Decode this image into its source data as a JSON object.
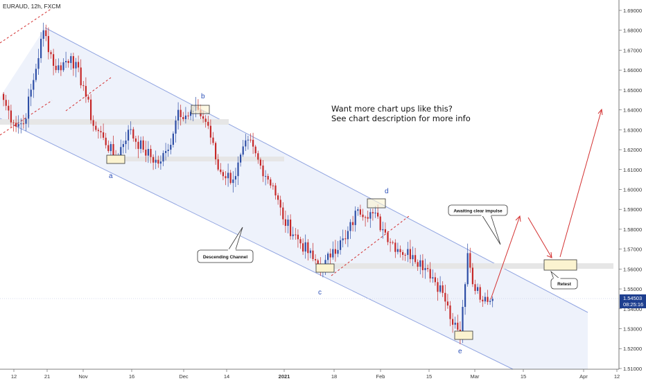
{
  "header": {
    "symbol": "EURAUD, 12h, FXCM"
  },
  "colors": {
    "up": "#2d4ea6",
    "down": "#c62828",
    "channel": "#8fa3e0",
    "channel_fill": "#eef2fb",
    "red_line": "#d32f2f",
    "zone": "#e6e6e6",
    "box_fill": "#fbf3d0",
    "price_tag": "#1e3f8f",
    "price_tag_line": "#888888"
  },
  "promo": {
    "line1": "Want more chart ups like this?",
    "line2": "See chart description for more info"
  },
  "callouts": {
    "descending_channel": "Descending Channel",
    "awaiting_impulse": "Awaiting clear impulse",
    "retest": "Retest"
  },
  "waves": {
    "a": "a",
    "b": "b",
    "c": "c",
    "d": "d",
    "e": "e"
  },
  "current_price": {
    "value": "1.54503",
    "countdown": "08:25:16"
  },
  "chart_data": {
    "type": "candlestick",
    "title": "EURAUD, 12h, FXCM",
    "ylim": [
      1.505,
      1.695
    ],
    "y_ticks": [
      "1.69000",
      "1.68000",
      "1.67000",
      "1.66000",
      "1.65000",
      "1.64000",
      "1.63000",
      "1.62000",
      "1.61000",
      "1.60000",
      "1.59000",
      "1.58000",
      "1.57000",
      "1.56000",
      "1.55000",
      "1.54000",
      "1.53000",
      "1.52000",
      "1.51000"
    ],
    "x_ticks": [
      "12",
      "21",
      "Nov",
      "16",
      "Dec",
      "14",
      "2021",
      "18",
      "Feb",
      "15",
      "Mar",
      "15",
      "Apr",
      "12"
    ],
    "anchors": [
      {
        "t": 0,
        "p": 1.645
      },
      {
        "t": 4,
        "p": 1.6335
      },
      {
        "t": 8,
        "p": 1.633
      },
      {
        "t": 12,
        "p": 1.655
      },
      {
        "t": 16,
        "p": 1.68
      },
      {
        "t": 21,
        "p": 1.66
      },
      {
        "t": 27,
        "p": 1.667
      },
      {
        "t": 32,
        "p": 1.652
      },
      {
        "t": 36,
        "p": 1.632
      },
      {
        "t": 40,
        "p": 1.626
      },
      {
        "t": 45,
        "p": 1.615
      },
      {
        "t": 50,
        "p": 1.63
      },
      {
        "t": 56,
        "p": 1.62
      },
      {
        "t": 62,
        "p": 1.613
      },
      {
        "t": 66,
        "p": 1.62
      },
      {
        "t": 70,
        "p": 1.64
      },
      {
        "t": 74,
        "p": 1.637
      },
      {
        "t": 78,
        "p": 1.64
      },
      {
        "t": 82,
        "p": 1.632
      },
      {
        "t": 86,
        "p": 1.61
      },
      {
        "t": 92,
        "p": 1.605
      },
      {
        "t": 98,
        "p": 1.625
      },
      {
        "t": 103,
        "p": 1.612
      },
      {
        "t": 108,
        "p": 1.602
      },
      {
        "t": 112,
        "p": 1.585
      },
      {
        "t": 118,
        "p": 1.575
      },
      {
        "t": 124,
        "p": 1.565
      },
      {
        "t": 128,
        "p": 1.56
      },
      {
        "t": 132,
        "p": 1.57
      },
      {
        "t": 137,
        "p": 1.575
      },
      {
        "t": 142,
        "p": 1.59
      },
      {
        "t": 148,
        "p": 1.588
      },
      {
        "t": 152,
        "p": 1.58
      },
      {
        "t": 158,
        "p": 1.57
      },
      {
        "t": 164,
        "p": 1.567
      },
      {
        "t": 170,
        "p": 1.56
      },
      {
        "t": 176,
        "p": 1.548
      },
      {
        "t": 180,
        "p": 1.532
      },
      {
        "t": 183,
        "p": 1.526
      },
      {
        "t": 186,
        "p": 1.568
      },
      {
        "t": 189,
        "p": 1.549
      },
      {
        "t": 193,
        "p": 1.546
      },
      {
        "t": 196,
        "p": 1.545
      }
    ],
    "swings": [
      {
        "label": "a",
        "price": 1.614
      },
      {
        "label": "b",
        "price": 1.641
      },
      {
        "label": "c",
        "price": 1.56
      },
      {
        "label": "d",
        "price": 1.5935
      },
      {
        "label": "e",
        "price": 1.525
      }
    ],
    "projection": {
      "retest_zone": [
        1.559,
        1.5645
      ],
      "target": 1.6405
    },
    "last_price": 1.54503
  }
}
